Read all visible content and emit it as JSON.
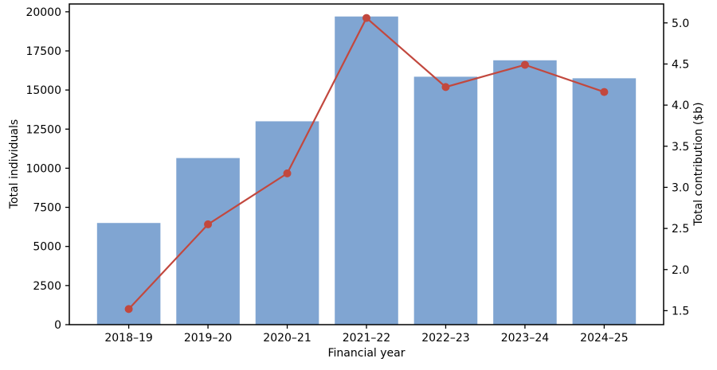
{
  "chart_data": {
    "type": "bar",
    "subtype": "dual-axis bar + line",
    "title": "",
    "categories": [
      "2018–19",
      "2019–20",
      "2020–21",
      "2021–22",
      "2022–23",
      "2023–24",
      "2024–25"
    ],
    "series": [
      {
        "name": "Total individuals",
        "type": "bar",
        "axis": "left",
        "values": [
          6500,
          10650,
          13000,
          19700,
          15850,
          16900,
          15750
        ]
      },
      {
        "name": "Total contribution ($b)",
        "type": "line",
        "axis": "right",
        "marker": "circle",
        "values": [
          1.52,
          2.55,
          3.17,
          5.06,
          4.22,
          4.49,
          4.16
        ]
      }
    ],
    "xlabel": "Financial year",
    "ylabel_left": "Total individuals",
    "ylabel_right": "Total contribution ($b)",
    "yticks_left": [
      0,
      2500,
      5000,
      7500,
      10000,
      12500,
      15000,
      17500,
      20000
    ],
    "yticks_right": [
      1.5,
      2.0,
      2.5,
      3.0,
      3.5,
      4.0,
      4.5,
      5.0
    ],
    "ylim_left": [
      0,
      20500
    ],
    "ylim_right": [
      1.33,
      5.23
    ],
    "grid": false,
    "legend_position": "none",
    "colors": {
      "bar": "#80a5d2",
      "line": "#c2483e",
      "axis": "#000000",
      "background": "#ffffff"
    }
  }
}
